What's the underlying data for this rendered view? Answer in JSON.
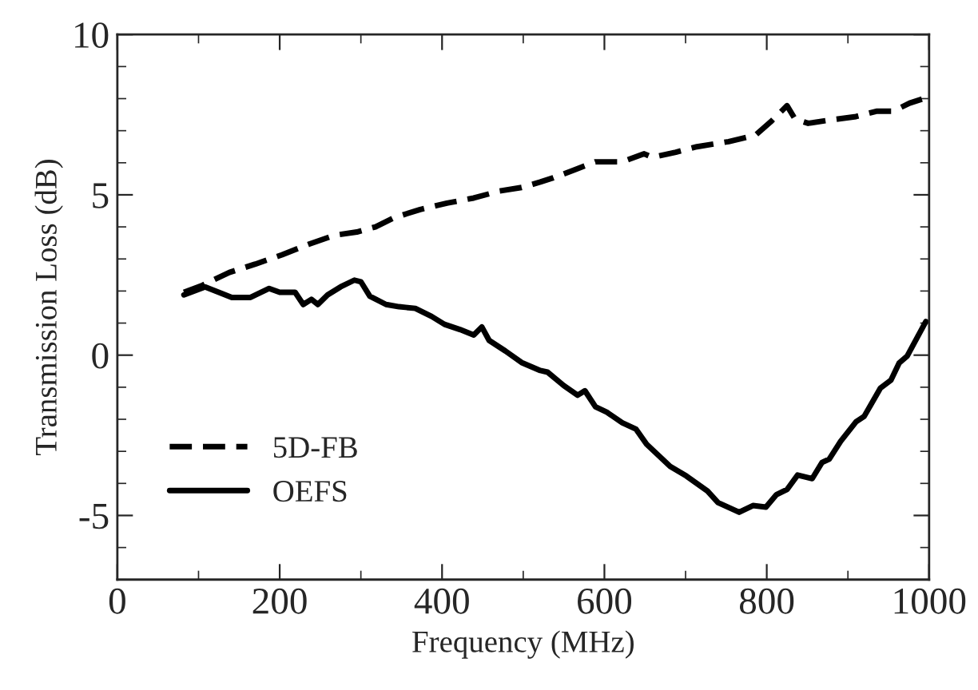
{
  "chart_data": {
    "type": "line",
    "xlabel": "Frequency (MHz)",
    "ylabel": "Transmission Loss (dB)",
    "xlim": [
      0,
      1000
    ],
    "xticks": [
      0,
      200,
      400,
      600,
      800,
      1000
    ],
    "ylim": [
      -7,
      10
    ],
    "yticks": [
      -5,
      0,
      5,
      10
    ],
    "grid": false,
    "legend": "bottom left",
    "marker": "none",
    "series": [
      {
        "name": "5D-FB",
        "color": "#000000",
        "line_style": "dashed",
        "x": [
          82,
          105,
          138,
          170,
          203,
          236,
          268,
          295,
          318,
          341,
          373,
          406,
          439,
          471,
          498,
          521,
          537,
          563,
          589,
          622,
          649,
          659,
          688,
          714,
          753,
          786,
          805,
          825,
          835,
          851,
          877,
          910,
          936,
          956,
          976,
          992
        ],
        "values": [
          1.96,
          2.18,
          2.58,
          2.84,
          3.13,
          3.46,
          3.74,
          3.84,
          4.0,
          4.29,
          4.54,
          4.74,
          4.9,
          5.12,
          5.23,
          5.4,
          5.53,
          5.78,
          6.03,
          6.03,
          6.28,
          6.17,
          6.33,
          6.5,
          6.66,
          6.86,
          7.28,
          7.78,
          7.36,
          7.23,
          7.33,
          7.44,
          7.61,
          7.61,
          7.86,
          7.99
        ]
      },
      {
        "name": "OEFS",
        "color": "#000000",
        "line_style": "solid",
        "x": [
          82,
          108,
          128,
          141,
          164,
          187,
          200,
          219,
          229,
          239,
          247,
          259,
          275,
          292,
          300,
          311,
          331,
          347,
          367,
          387,
          403,
          422,
          439,
          449,
          458,
          478,
          498,
          521,
          530,
          550,
          567,
          576,
          589,
          603,
          622,
          639,
          652,
          681,
          701,
          727,
          740,
          766,
          783,
          799,
          812,
          825,
          838,
          856,
          868,
          877,
          891,
          910,
          920,
          940,
          953,
          963,
          973,
          986,
          996
        ],
        "values": [
          1.88,
          2.13,
          1.93,
          1.8,
          1.8,
          2.08,
          1.96,
          1.96,
          1.58,
          1.74,
          1.58,
          1.88,
          2.13,
          2.34,
          2.29,
          1.84,
          1.58,
          1.51,
          1.46,
          1.21,
          0.96,
          0.8,
          0.63,
          0.88,
          0.46,
          0.13,
          -0.23,
          -0.48,
          -0.53,
          -0.95,
          -1.25,
          -1.11,
          -1.61,
          -1.78,
          -2.11,
          -2.31,
          -2.78,
          -3.47,
          -3.77,
          -4.24,
          -4.6,
          -4.9,
          -4.69,
          -4.74,
          -4.35,
          -4.19,
          -3.74,
          -3.85,
          -3.35,
          -3.24,
          -2.69,
          -2.08,
          -1.91,
          -1.03,
          -0.78,
          -0.25,
          -0.03,
          0.58,
          1.05
        ]
      }
    ]
  }
}
